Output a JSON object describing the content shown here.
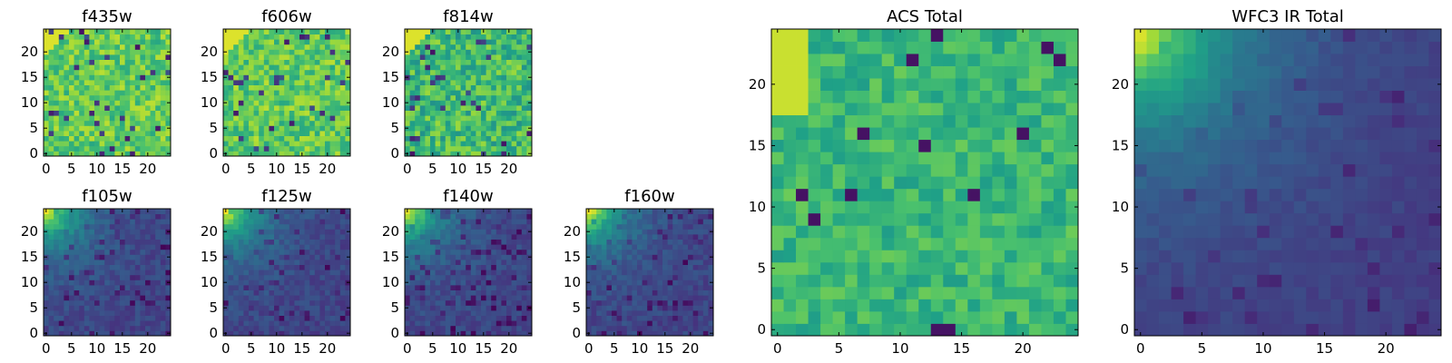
{
  "chart_data": [
    {
      "type": "heatmap",
      "title": "f435w",
      "xticks": [
        "0",
        "5",
        "10",
        "15",
        "20"
      ],
      "yticks": [
        "0",
        "5",
        "10",
        "15",
        "20"
      ],
      "range": [
        0,
        24
      ],
      "pattern": "uniform-high",
      "seed": 11
    },
    {
      "type": "heatmap",
      "title": "f606w",
      "xticks": [
        "0",
        "5",
        "10",
        "15",
        "20"
      ],
      "yticks": [
        "0",
        "5",
        "10",
        "15",
        "20"
      ],
      "range": [
        0,
        24
      ],
      "pattern": "uniform-high",
      "seed": 23
    },
    {
      "type": "heatmap",
      "title": "f814w",
      "xticks": [
        "0",
        "5",
        "10",
        "15",
        "20"
      ],
      "yticks": [
        "0",
        "5",
        "10",
        "15",
        "20"
      ],
      "range": [
        0,
        24
      ],
      "pattern": "uniform-mid",
      "seed": 37
    },
    {
      "type": "heatmap",
      "title": "f105w",
      "xticks": [
        "0",
        "5",
        "10",
        "15",
        "20"
      ],
      "yticks": [
        "0",
        "5",
        "10",
        "15",
        "20"
      ],
      "range": [
        0,
        24
      ],
      "pattern": "corner-glow",
      "seed": 41
    },
    {
      "type": "heatmap",
      "title": "f125w",
      "xticks": [
        "0",
        "5",
        "10",
        "15",
        "20"
      ],
      "yticks": [
        "0",
        "5",
        "10",
        "15",
        "20"
      ],
      "range": [
        0,
        24
      ],
      "pattern": "corner-glow",
      "seed": 53
    },
    {
      "type": "heatmap",
      "title": "f140w",
      "xticks": [
        "0",
        "5",
        "10",
        "15",
        "20"
      ],
      "yticks": [
        "0",
        "5",
        "10",
        "15",
        "20"
      ],
      "range": [
        0,
        24
      ],
      "pattern": "corner-glow",
      "seed": 67
    },
    {
      "type": "heatmap",
      "title": "f160w",
      "xticks": [
        "0",
        "5",
        "10",
        "15",
        "20"
      ],
      "yticks": [
        "0",
        "5",
        "10",
        "15",
        "20"
      ],
      "range": [
        0,
        24
      ],
      "pattern": "corner-glow",
      "seed": 79
    },
    {
      "type": "heatmap",
      "title": "ACS Total",
      "xticks": [
        "0",
        "5",
        "10",
        "15",
        "20"
      ],
      "yticks": [
        "0",
        "5",
        "10",
        "15",
        "20"
      ],
      "range": [
        0,
        24
      ],
      "pattern": "acs-total",
      "seed": 97
    },
    {
      "type": "heatmap",
      "title": "WFC3 IR Total",
      "xticks": [
        "0",
        "5",
        "10",
        "15",
        "20"
      ],
      "yticks": [
        "0",
        "5",
        "10",
        "15",
        "20"
      ],
      "range": [
        0,
        24
      ],
      "pattern": "ir-total",
      "seed": 131
    }
  ],
  "colormap": [
    "#440154",
    "#46327e",
    "#365c8d",
    "#277f8e",
    "#1fa187",
    "#4ac16d",
    "#a0da39",
    "#fde725"
  ]
}
